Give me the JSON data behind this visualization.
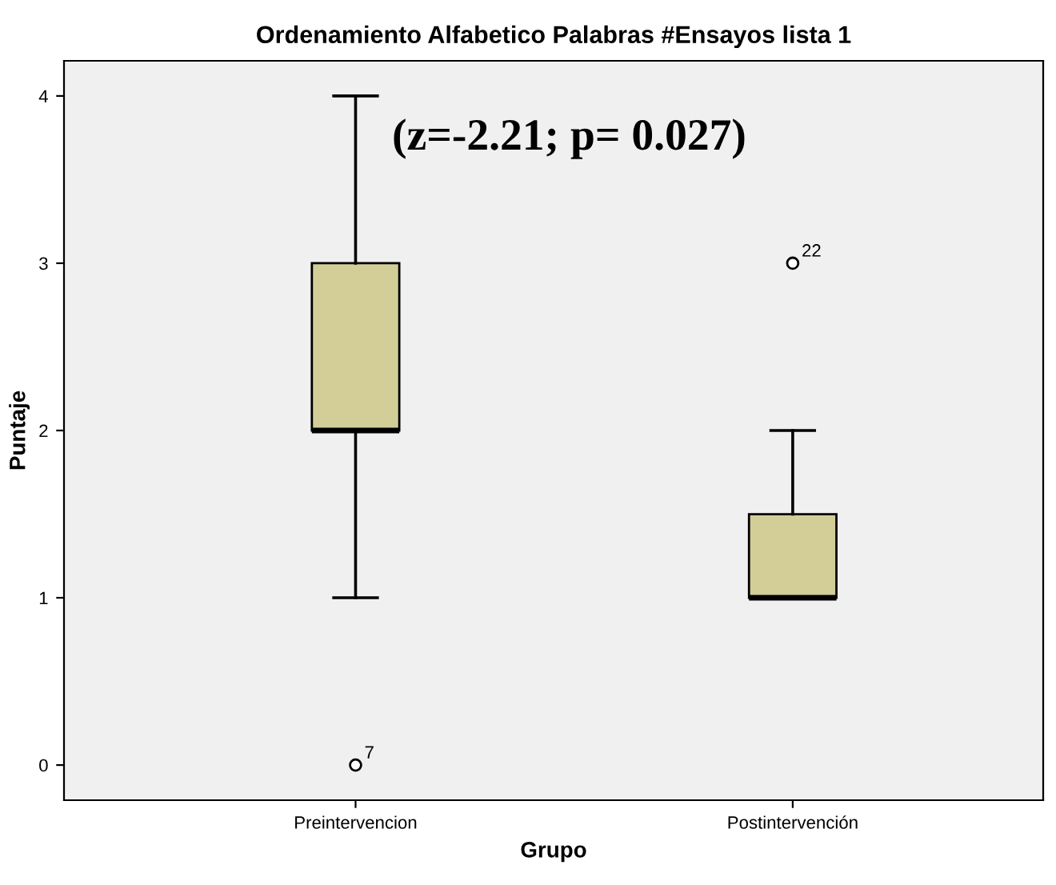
{
  "chart_data": {
    "type": "box",
    "title": "Ordenamiento Alfabetico Palabras #Ensayos lista 1",
    "xlabel": "Grupo",
    "ylabel": "Puntaje",
    "categories": [
      "Preintervencion",
      "Postintervención"
    ],
    "boxes": [
      {
        "low": 1,
        "q1": 2,
        "median": 2,
        "q3": 3,
        "high": 4,
        "outliers": [
          0
        ]
      },
      {
        "low": 1,
        "q1": 1,
        "median": 1,
        "q3": 1.5,
        "high": 2,
        "outliers": [
          3
        ]
      }
    ],
    "color": "#d3ce97",
    "ylim": [
      -0.21,
      4.21
    ],
    "yticks": [
      0,
      1,
      2,
      3,
      4
    ],
    "grid": false,
    "annotations": [
      "(z=-2.21; p= 0.027)",
      "7",
      "22"
    ]
  }
}
